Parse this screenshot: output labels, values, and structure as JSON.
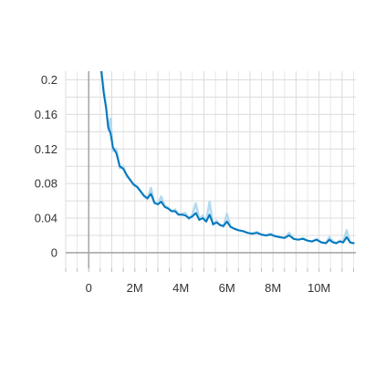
{
  "chart_data": {
    "type": "line",
    "title": "",
    "xlabel": "",
    "ylabel": "",
    "xlim": [
      -1000000,
      11600000
    ],
    "ylim": [
      -0.018,
      0.21
    ],
    "x_ticks": [
      0,
      2000000,
      4000000,
      6000000,
      8000000,
      10000000
    ],
    "x_tick_labels": [
      "0",
      "2M",
      "4M",
      "6M",
      "8M",
      "10M"
    ],
    "y_ticks": [
      0,
      0.04,
      0.08,
      0.12,
      0.16,
      0.2
    ],
    "y_tick_labels": [
      "0",
      "0.04",
      "0.08",
      "0.12",
      "0.16",
      "0.2"
    ],
    "grid": true,
    "colors": {
      "smoothed": "#0277bd",
      "raw": "#b3d9ef",
      "zero_line": "#a8a8a8"
    },
    "series": [
      {
        "style": "raw",
        "x": [
          550000,
          650000,
          750000,
          850000,
          950000,
          1050000,
          1200000,
          1350000,
          1500000,
          1650000,
          1800000,
          1950000,
          2100000,
          2250000,
          2400000,
          2550000,
          2700000,
          2850000,
          3000000,
          3150000,
          3300000,
          3450000,
          3600000,
          3750000,
          3900000,
          4050000,
          4200000,
          4350000,
          4500000,
          4650000,
          4800000,
          4950000,
          5100000,
          5250000,
          5400000,
          5550000,
          5700000,
          5850000,
          6000000,
          6150000,
          6300000,
          6500000,
          6700000,
          6900000,
          7100000,
          7300000,
          7500000,
          7700000,
          7900000,
          8100000,
          8300000,
          8500000,
          8700000,
          8900000,
          9100000,
          9300000,
          9500000,
          9700000,
          9900000,
          10100000,
          10300000,
          10450000,
          10600000,
          10750000,
          10900000,
          11050000,
          11200000,
          11350000,
          11500000
        ],
        "y": [
          0.21,
          0.19,
          0.17,
          0.142,
          0.155,
          0.118,
          0.12,
          0.098,
          0.1,
          0.088,
          0.085,
          0.078,
          0.077,
          0.072,
          0.065,
          0.062,
          0.075,
          0.057,
          0.056,
          0.065,
          0.054,
          0.052,
          0.048,
          0.05,
          0.044,
          0.045,
          0.046,
          0.039,
          0.044,
          0.057,
          0.038,
          0.043,
          0.036,
          0.059,
          0.032,
          0.037,
          0.032,
          0.03,
          0.045,
          0.03,
          0.028,
          0.026,
          0.025,
          0.023,
          0.022,
          0.024,
          0.021,
          0.02,
          0.022,
          0.019,
          0.018,
          0.017,
          0.023,
          0.016,
          0.015,
          0.017,
          0.014,
          0.013,
          0.016,
          0.012,
          0.011,
          0.018,
          0.013,
          0.011,
          0.014,
          0.012,
          0.026,
          0.012,
          0.011
        ]
      },
      {
        "style": "smoothed",
        "x": [
          550000,
          650000,
          750000,
          850000,
          950000,
          1050000,
          1200000,
          1350000,
          1500000,
          1650000,
          1800000,
          1950000,
          2100000,
          2250000,
          2400000,
          2550000,
          2700000,
          2850000,
          3000000,
          3150000,
          3300000,
          3450000,
          3600000,
          3750000,
          3900000,
          4050000,
          4200000,
          4350000,
          4500000,
          4650000,
          4800000,
          4950000,
          5100000,
          5250000,
          5400000,
          5550000,
          5700000,
          5850000,
          6000000,
          6150000,
          6300000,
          6500000,
          6700000,
          6900000,
          7100000,
          7300000,
          7500000,
          7700000,
          7900000,
          8100000,
          8300000,
          8500000,
          8700000,
          8900000,
          9100000,
          9300000,
          9500000,
          9700000,
          9900000,
          10100000,
          10300000,
          10450000,
          10600000,
          10750000,
          10900000,
          11050000,
          11200000,
          11350000,
          11500000
        ],
        "y": [
          0.21,
          0.185,
          0.168,
          0.145,
          0.138,
          0.122,
          0.115,
          0.1,
          0.097,
          0.09,
          0.084,
          0.079,
          0.076,
          0.071,
          0.066,
          0.063,
          0.068,
          0.058,
          0.056,
          0.059,
          0.053,
          0.051,
          0.048,
          0.048,
          0.044,
          0.044,
          0.043,
          0.04,
          0.042,
          0.046,
          0.038,
          0.04,
          0.036,
          0.044,
          0.033,
          0.035,
          0.032,
          0.031,
          0.036,
          0.03,
          0.028,
          0.026,
          0.025,
          0.023,
          0.022,
          0.023,
          0.021,
          0.02,
          0.021,
          0.019,
          0.018,
          0.017,
          0.02,
          0.016,
          0.015,
          0.016,
          0.014,
          0.013,
          0.015,
          0.012,
          0.011,
          0.015,
          0.012,
          0.011,
          0.013,
          0.012,
          0.018,
          0.012,
          0.011
        ]
      }
    ]
  }
}
